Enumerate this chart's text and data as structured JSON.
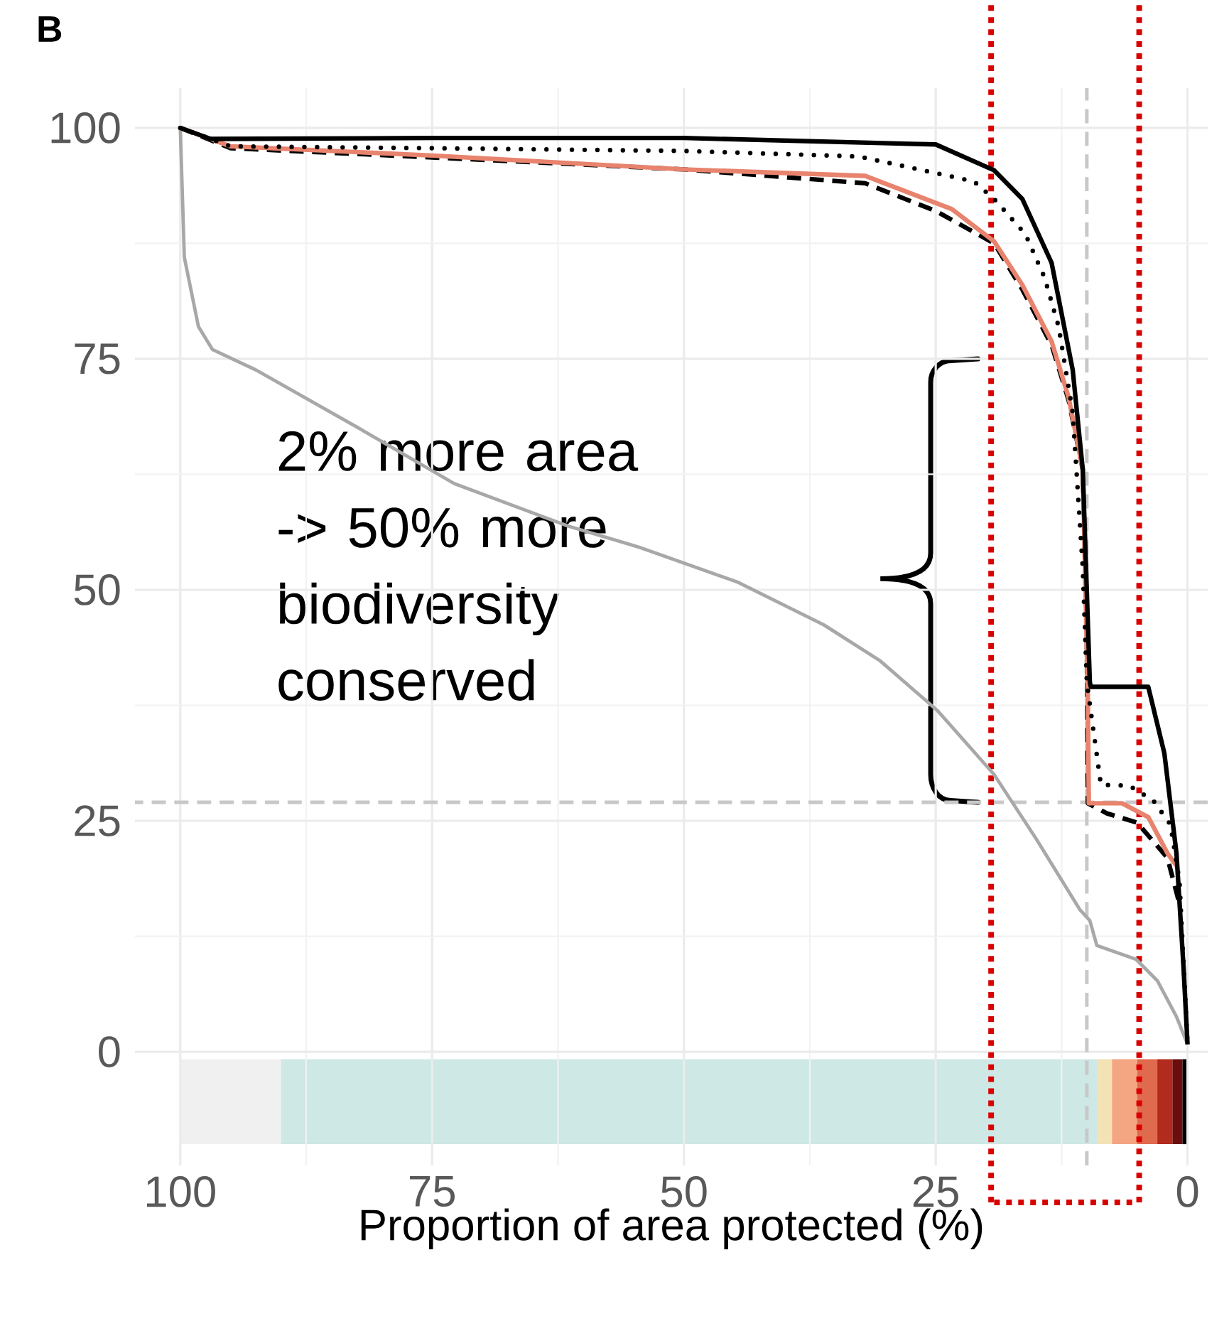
{
  "chart_data": {
    "type": "line",
    "title": "B",
    "xlabel": "Proportion of area protected (%)",
    "xlim": [
      104.5,
      -2
    ],
    "ylim": [
      -12.3,
      104.3
    ],
    "xticks": [
      100,
      75,
      50,
      25,
      0
    ],
    "yticks": [
      0,
      25,
      50,
      75,
      100
    ],
    "grid": true,
    "ref_lines": [
      {
        "axis": "x",
        "value": 10,
        "color": "#c8c8c8",
        "line_style": "dashed"
      },
      {
        "axis": "y",
        "value": 27,
        "color": "#c8c8c8",
        "line_style": "dashed"
      },
      {
        "axis": "x",
        "value": 19.5,
        "color": "#d90000",
        "line_style": "dotted"
      },
      {
        "axis": "x",
        "value": 4.8,
        "color": "#d90000",
        "line_style": "dotted"
      }
    ],
    "annotations": [
      "2% more area -> 50% more biodiversity conserved"
    ],
    "series": [
      {
        "color": "#a8a8a8",
        "line_style": "solid",
        "x": [
          100,
          99.6,
          98.2,
          96.8,
          92.5,
          82.6,
          72.8,
          61.5,
          54.4,
          44.6,
          36.1,
          30.5,
          24.8,
          19.2,
          15,
          10.7,
          9.7,
          9,
          5.1,
          3,
          1.1,
          0
        ],
        "values": [
          100,
          86,
          78.5,
          76,
          73.8,
          67.7,
          61.5,
          56.9,
          54.6,
          50.8,
          46.2,
          42.3,
          36.9,
          30,
          23,
          15.4,
          14.2,
          11.5,
          10,
          7.7,
          3.8,
          0.8
        ]
      },
      {
        "color": "#000000",
        "line_style": "dashed",
        "x": [
          100,
          95,
          75,
          50,
          32,
          25,
          19.2,
          16.4,
          13.5,
          11.8,
          10.4,
          10,
          9.9,
          8,
          5,
          2,
          0.8
        ],
        "values": [
          100,
          97.8,
          96.8,
          95.5,
          94,
          91,
          87.5,
          82.5,
          76.5,
          70.5,
          63,
          45,
          26.9,
          25.8,
          24.8,
          21,
          16
        ]
      },
      {
        "color": "#e8836e",
        "line_style": "solid",
        "x": [
          100,
          95,
          75,
          50,
          32,
          23.4,
          19.2,
          16.4,
          13.5,
          11.8,
          10.4,
          9.9,
          9.8,
          6.5,
          3.9,
          2,
          1
        ],
        "values": [
          100,
          98,
          97,
          95.5,
          94.8,
          91.2,
          87.7,
          83,
          76.9,
          70.8,
          63,
          38.5,
          26.9,
          26.9,
          25.4,
          21.5,
          20
        ]
      },
      {
        "color": "#000000",
        "line_style": "dotted",
        "x": [
          100,
          95,
          75,
          50,
          32.6,
          21.2,
          19.2,
          16.1,
          14.2,
          12.8,
          11.4,
          10.4,
          10,
          8.6,
          5.8,
          3.4,
          1.7,
          0.8,
          0
        ],
        "values": [
          100,
          98,
          97.8,
          97.5,
          96.9,
          94.2,
          92.3,
          88.5,
          83.8,
          78.5,
          69.2,
          52.3,
          40,
          28.9,
          28.8,
          27.2,
          24.6,
          18.5,
          0.8
        ]
      },
      {
        "color": "#000000",
        "line_style": "solid",
        "x": [
          100,
          97,
          75,
          50,
          25,
          19.2,
          16.4,
          13.5,
          11.4,
          10.4,
          9.7,
          9.6,
          3.9,
          2.3,
          1.1,
          0.4,
          0
        ],
        "values": [
          100,
          98.8,
          98.9,
          98.9,
          98.2,
          95.4,
          92.3,
          85.4,
          73.8,
          63,
          40,
          39.5,
          39.5,
          32.3,
          21.5,
          9.2,
          0.8
        ]
      }
    ]
  }
}
